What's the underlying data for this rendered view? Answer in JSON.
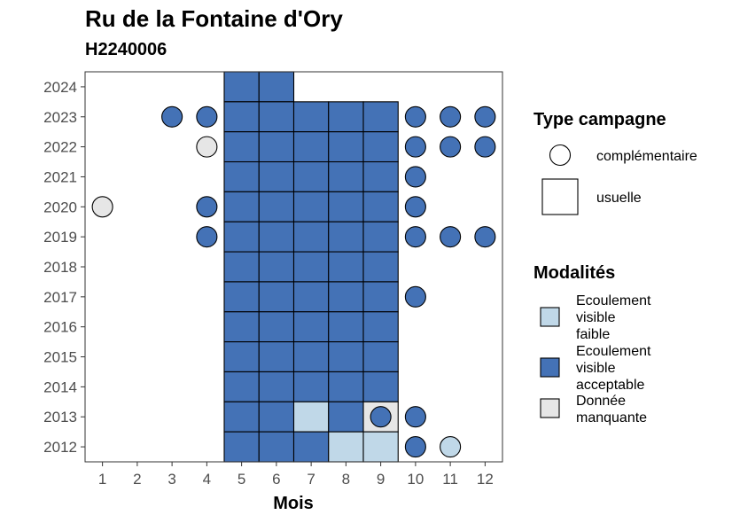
{
  "chart_data": {
    "type": "heatmap",
    "title": "Ru de la Fontaine d'Ory",
    "subtitle": "H2240006",
    "xlabel": "Mois",
    "ylabel": "",
    "x_ticks": [
      1,
      2,
      3,
      4,
      5,
      6,
      7,
      8,
      9,
      10,
      11,
      12
    ],
    "y_ticks": [
      2012,
      2013,
      2014,
      2015,
      2016,
      2017,
      2018,
      2019,
      2020,
      2021,
      2022,
      2023,
      2024
    ],
    "xlim": [
      0.5,
      12.5
    ],
    "ylim": [
      2011.5,
      2024.5
    ],
    "grid": false,
    "legend_position": "right",
    "legend": {
      "shape_title": "Type campagne",
      "shapes": [
        {
          "key": "complementaire",
          "label": "complémentaire",
          "shape": "circle"
        },
        {
          "key": "usuelle",
          "label": "usuelle",
          "shape": "square"
        }
      ],
      "fill_title": "Modalités",
      "fills": [
        {
          "key": "faible",
          "label_lines": [
            "Ecoulement",
            "visible",
            "faible"
          ],
          "color": "#c0d8e8"
        },
        {
          "key": "acceptable",
          "label_lines": [
            "Ecoulement",
            "visible",
            "acceptable"
          ],
          "color": "#4472b6"
        },
        {
          "key": "manquante",
          "label_lines": [
            "Donnée",
            "manquante"
          ],
          "color": "#e6e6e6"
        }
      ]
    },
    "points": [
      {
        "year": 2024,
        "month": 5,
        "type": "usuelle",
        "modalite": "acceptable"
      },
      {
        "year": 2024,
        "month": 6,
        "type": "usuelle",
        "modalite": "acceptable"
      },
      {
        "year": 2023,
        "month": 3,
        "type": "complementaire",
        "modalite": "acceptable"
      },
      {
        "year": 2023,
        "month": 4,
        "type": "complementaire",
        "modalite": "acceptable"
      },
      {
        "year": 2023,
        "month": 5,
        "type": "usuelle",
        "modalite": "acceptable"
      },
      {
        "year": 2023,
        "month": 6,
        "type": "usuelle",
        "modalite": "acceptable"
      },
      {
        "year": 2023,
        "month": 7,
        "type": "usuelle",
        "modalite": "acceptable"
      },
      {
        "year": 2023,
        "month": 8,
        "type": "usuelle",
        "modalite": "acceptable"
      },
      {
        "year": 2023,
        "month": 9,
        "type": "usuelle",
        "modalite": "acceptable"
      },
      {
        "year": 2023,
        "month": 10,
        "type": "complementaire",
        "modalite": "acceptable"
      },
      {
        "year": 2023,
        "month": 11,
        "type": "complementaire",
        "modalite": "acceptable"
      },
      {
        "year": 2023,
        "month": 12,
        "type": "complementaire",
        "modalite": "acceptable"
      },
      {
        "year": 2022,
        "month": 4,
        "type": "complementaire",
        "modalite": "manquante"
      },
      {
        "year": 2022,
        "month": 5,
        "type": "usuelle",
        "modalite": "acceptable"
      },
      {
        "year": 2022,
        "month": 6,
        "type": "usuelle",
        "modalite": "acceptable"
      },
      {
        "year": 2022,
        "month": 7,
        "type": "usuelle",
        "modalite": "acceptable"
      },
      {
        "year": 2022,
        "month": 8,
        "type": "usuelle",
        "modalite": "acceptable"
      },
      {
        "year": 2022,
        "month": 9,
        "type": "usuelle",
        "modalite": "acceptable"
      },
      {
        "year": 2022,
        "month": 10,
        "type": "complementaire",
        "modalite": "acceptable"
      },
      {
        "year": 2022,
        "month": 11,
        "type": "complementaire",
        "modalite": "acceptable"
      },
      {
        "year": 2022,
        "month": 12,
        "type": "complementaire",
        "modalite": "acceptable"
      },
      {
        "year": 2021,
        "month": 5,
        "type": "usuelle",
        "modalite": "acceptable"
      },
      {
        "year": 2021,
        "month": 6,
        "type": "usuelle",
        "modalite": "acceptable"
      },
      {
        "year": 2021,
        "month": 7,
        "type": "usuelle",
        "modalite": "acceptable"
      },
      {
        "year": 2021,
        "month": 8,
        "type": "usuelle",
        "modalite": "acceptable"
      },
      {
        "year": 2021,
        "month": 9,
        "type": "usuelle",
        "modalite": "acceptable"
      },
      {
        "year": 2021,
        "month": 10,
        "type": "complementaire",
        "modalite": "acceptable"
      },
      {
        "year": 2020,
        "month": 1,
        "type": "complementaire",
        "modalite": "manquante"
      },
      {
        "year": 2020,
        "month": 4,
        "type": "complementaire",
        "modalite": "acceptable"
      },
      {
        "year": 2020,
        "month": 5,
        "type": "usuelle",
        "modalite": "acceptable"
      },
      {
        "year": 2020,
        "month": 6,
        "type": "usuelle",
        "modalite": "acceptable"
      },
      {
        "year": 2020,
        "month": 7,
        "type": "usuelle",
        "modalite": "acceptable"
      },
      {
        "year": 2020,
        "month": 8,
        "type": "usuelle",
        "modalite": "acceptable"
      },
      {
        "year": 2020,
        "month": 9,
        "type": "usuelle",
        "modalite": "acceptable"
      },
      {
        "year": 2020,
        "month": 10,
        "type": "complementaire",
        "modalite": "acceptable"
      },
      {
        "year": 2019,
        "month": 4,
        "type": "complementaire",
        "modalite": "acceptable"
      },
      {
        "year": 2019,
        "month": 5,
        "type": "usuelle",
        "modalite": "acceptable"
      },
      {
        "year": 2019,
        "month": 6,
        "type": "usuelle",
        "modalite": "acceptable"
      },
      {
        "year": 2019,
        "month": 7,
        "type": "usuelle",
        "modalite": "acceptable"
      },
      {
        "year": 2019,
        "month": 8,
        "type": "usuelle",
        "modalite": "acceptable"
      },
      {
        "year": 2019,
        "month": 9,
        "type": "usuelle",
        "modalite": "acceptable"
      },
      {
        "year": 2019,
        "month": 10,
        "type": "complementaire",
        "modalite": "acceptable"
      },
      {
        "year": 2019,
        "month": 11,
        "type": "complementaire",
        "modalite": "acceptable"
      },
      {
        "year": 2019,
        "month": 12,
        "type": "complementaire",
        "modalite": "acceptable"
      },
      {
        "year": 2018,
        "month": 5,
        "type": "usuelle",
        "modalite": "acceptable"
      },
      {
        "year": 2018,
        "month": 6,
        "type": "usuelle",
        "modalite": "acceptable"
      },
      {
        "year": 2018,
        "month": 7,
        "type": "usuelle",
        "modalite": "acceptable"
      },
      {
        "year": 2018,
        "month": 8,
        "type": "usuelle",
        "modalite": "acceptable"
      },
      {
        "year": 2018,
        "month": 9,
        "type": "usuelle",
        "modalite": "acceptable"
      },
      {
        "year": 2017,
        "month": 5,
        "type": "usuelle",
        "modalite": "acceptable"
      },
      {
        "year": 2017,
        "month": 6,
        "type": "usuelle",
        "modalite": "acceptable"
      },
      {
        "year": 2017,
        "month": 7,
        "type": "usuelle",
        "modalite": "acceptable"
      },
      {
        "year": 2017,
        "month": 8,
        "type": "usuelle",
        "modalite": "acceptable"
      },
      {
        "year": 2017,
        "month": 9,
        "type": "usuelle",
        "modalite": "acceptable"
      },
      {
        "year": 2017,
        "month": 10,
        "type": "complementaire",
        "modalite": "acceptable"
      },
      {
        "year": 2016,
        "month": 5,
        "type": "usuelle",
        "modalite": "acceptable"
      },
      {
        "year": 2016,
        "month": 6,
        "type": "usuelle",
        "modalite": "acceptable"
      },
      {
        "year": 2016,
        "month": 7,
        "type": "usuelle",
        "modalite": "acceptable"
      },
      {
        "year": 2016,
        "month": 8,
        "type": "usuelle",
        "modalite": "acceptable"
      },
      {
        "year": 2016,
        "month": 9,
        "type": "usuelle",
        "modalite": "acceptable"
      },
      {
        "year": 2015,
        "month": 5,
        "type": "usuelle",
        "modalite": "acceptable"
      },
      {
        "year": 2015,
        "month": 6,
        "type": "usuelle",
        "modalite": "acceptable"
      },
      {
        "year": 2015,
        "month": 7,
        "type": "usuelle",
        "modalite": "acceptable"
      },
      {
        "year": 2015,
        "month": 8,
        "type": "usuelle",
        "modalite": "acceptable"
      },
      {
        "year": 2015,
        "month": 9,
        "type": "usuelle",
        "modalite": "acceptable"
      },
      {
        "year": 2014,
        "month": 5,
        "type": "usuelle",
        "modalite": "acceptable"
      },
      {
        "year": 2014,
        "month": 6,
        "type": "usuelle",
        "modalite": "acceptable"
      },
      {
        "year": 2014,
        "month": 7,
        "type": "usuelle",
        "modalite": "acceptable"
      },
      {
        "year": 2014,
        "month": 8,
        "type": "usuelle",
        "modalite": "acceptable"
      },
      {
        "year": 2014,
        "month": 9,
        "type": "usuelle",
        "modalite": "acceptable"
      },
      {
        "year": 2013,
        "month": 5,
        "type": "usuelle",
        "modalite": "acceptable"
      },
      {
        "year": 2013,
        "month": 6,
        "type": "usuelle",
        "modalite": "acceptable"
      },
      {
        "year": 2013,
        "month": 7,
        "type": "usuelle",
        "modalite": "faible"
      },
      {
        "year": 2013,
        "month": 8,
        "type": "usuelle",
        "modalite": "acceptable"
      },
      {
        "year": 2013,
        "month": 9,
        "type": "usuelle",
        "modalite": "manquante"
      },
      {
        "year": 2013,
        "month": 9,
        "type": "complementaire",
        "modalite": "acceptable"
      },
      {
        "year": 2013,
        "month": 10,
        "type": "complementaire",
        "modalite": "acceptable"
      },
      {
        "year": 2012,
        "month": 5,
        "type": "usuelle",
        "modalite": "acceptable"
      },
      {
        "year": 2012,
        "month": 6,
        "type": "usuelle",
        "modalite": "acceptable"
      },
      {
        "year": 2012,
        "month": 7,
        "type": "usuelle",
        "modalite": "acceptable"
      },
      {
        "year": 2012,
        "month": 8,
        "type": "usuelle",
        "modalite": "faible"
      },
      {
        "year": 2012,
        "month": 9,
        "type": "usuelle",
        "modalite": "faible"
      },
      {
        "year": 2012,
        "month": 10,
        "type": "complementaire",
        "modalite": "acceptable"
      },
      {
        "year": 2012,
        "month": 11,
        "type": "complementaire",
        "modalite": "faible"
      }
    ]
  }
}
